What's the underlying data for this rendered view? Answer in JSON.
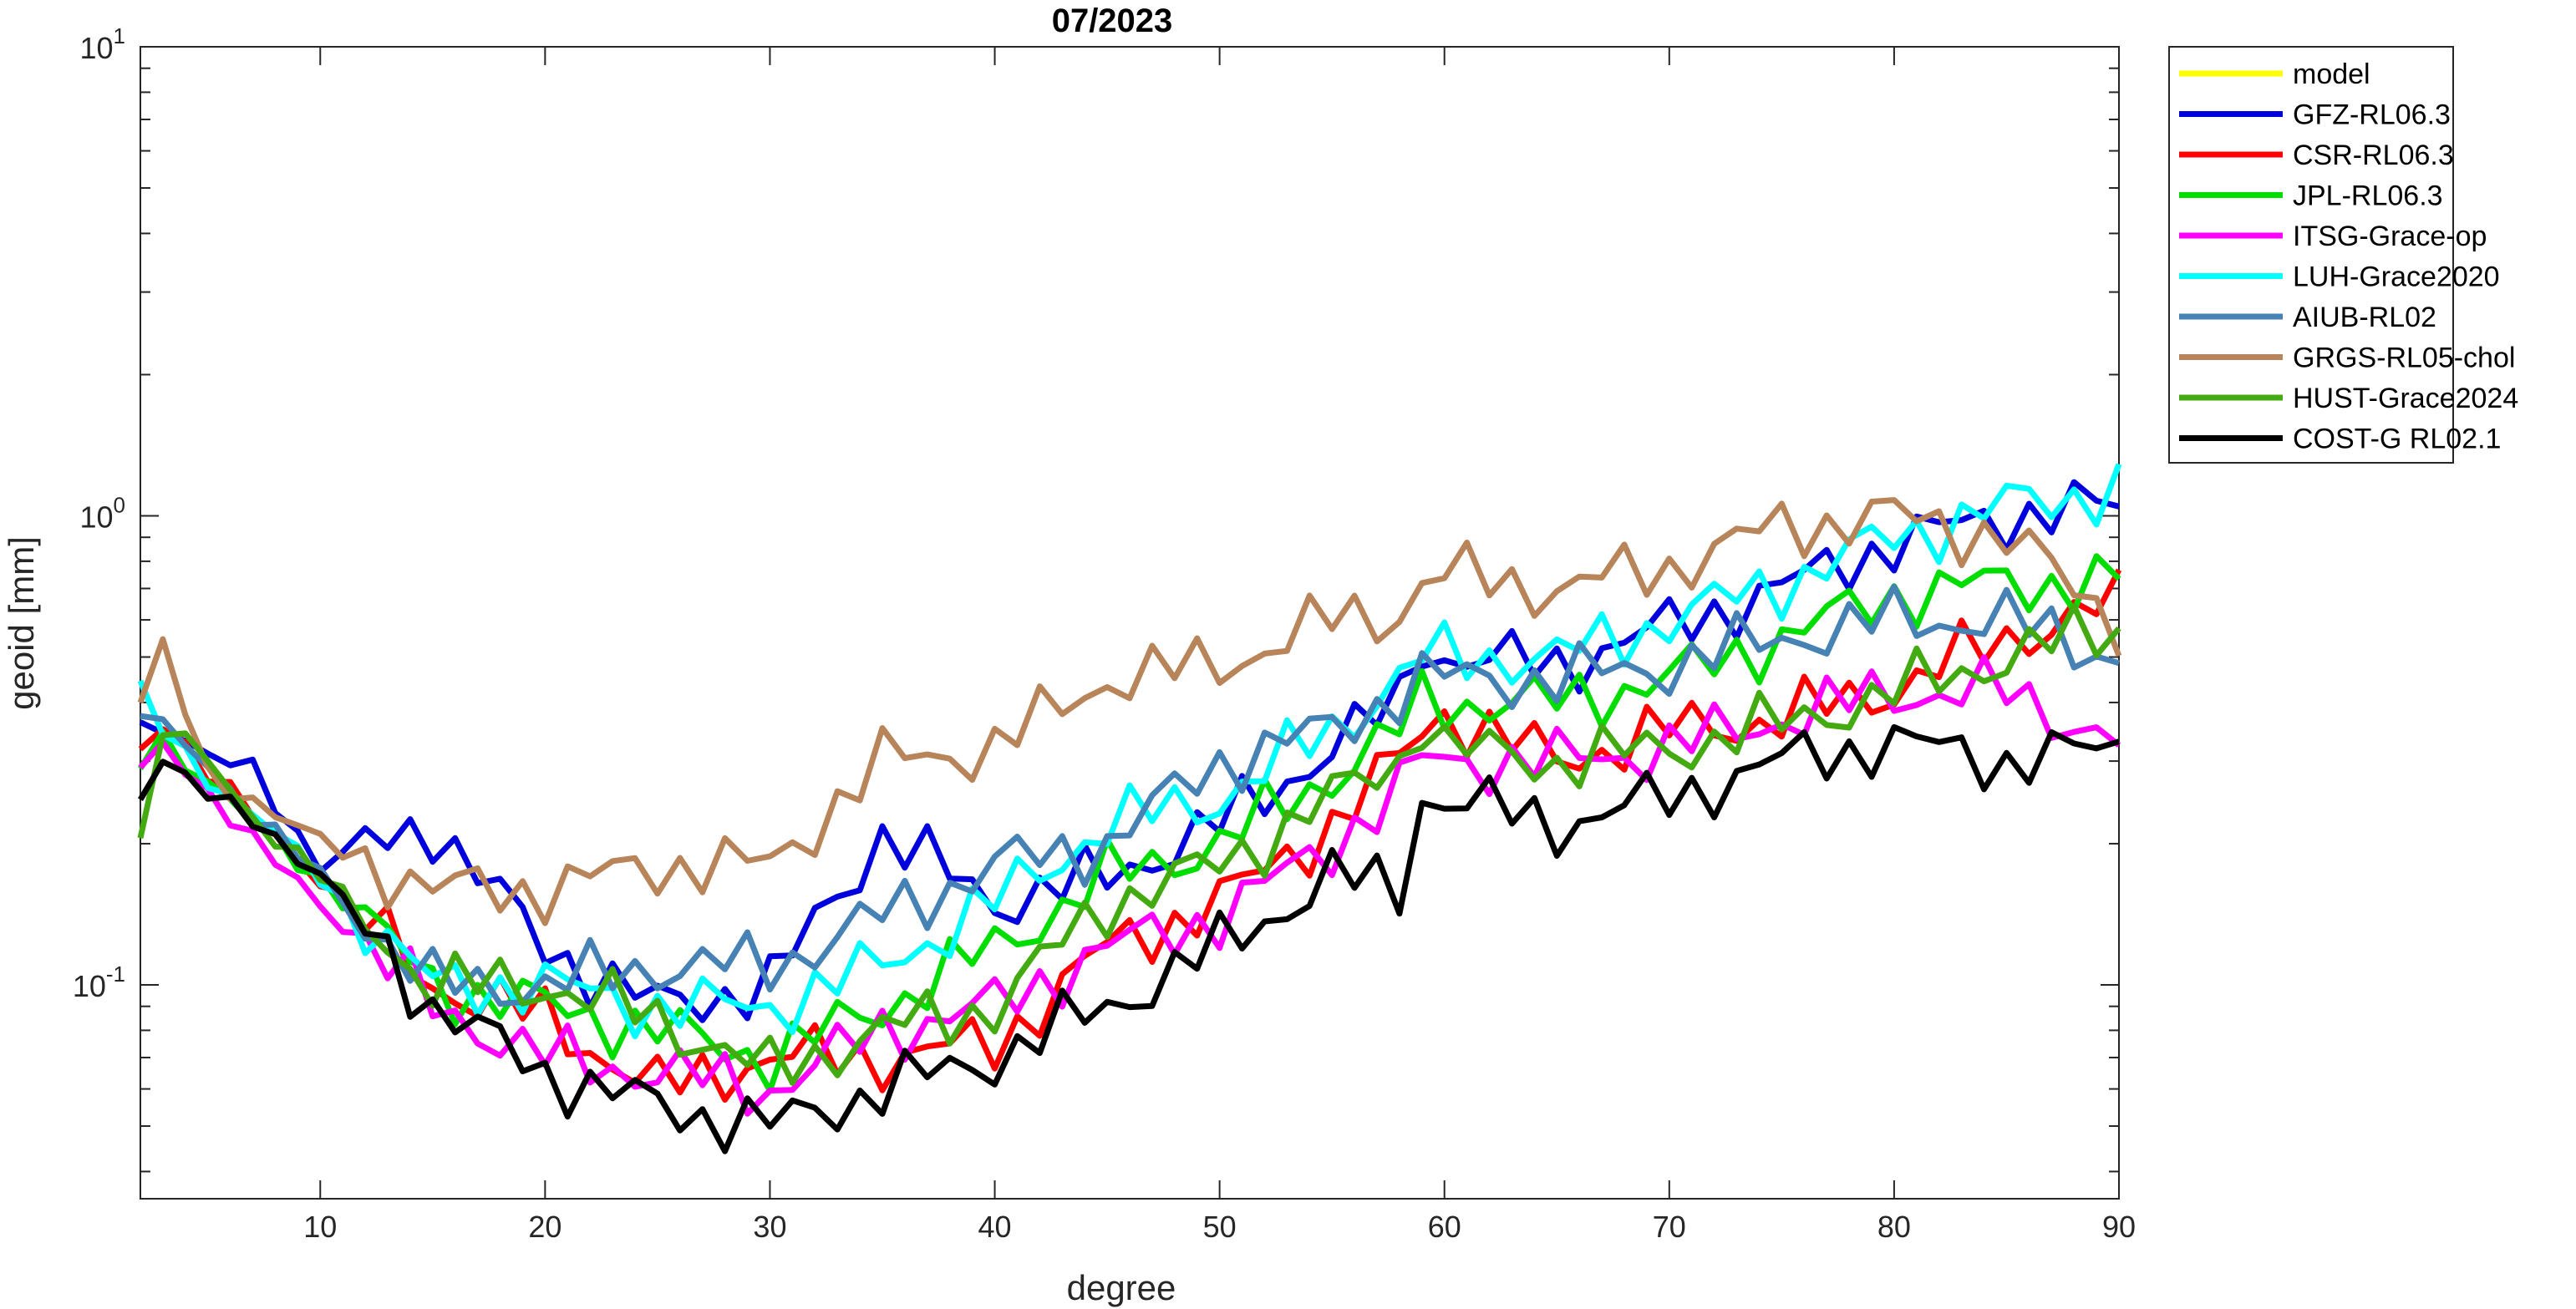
{
  "chart_data": {
    "type": "line",
    "title": "07/2023",
    "xlabel": "degree",
    "ylabel": "geoid [mm]",
    "xlim": [
      2,
      90
    ],
    "ylim": [
      0.035,
      10
    ],
    "yscale": "log",
    "grid": false,
    "legend_position": "outside-top-right",
    "x_ticks": [
      10,
      20,
      30,
      40,
      50,
      60,
      70,
      80,
      90
    ],
    "y_ticks": [
      {
        "value": 0.1,
        "base": "10",
        "exp": "-1"
      },
      {
        "value": 1,
        "base": "10",
        "exp": "0"
      },
      {
        "value": 10,
        "base": "10",
        "exp": "1"
      }
    ],
    "x_anchors": [
      2,
      3,
      5,
      7,
      10,
      15,
      20,
      25,
      30,
      35,
      40,
      45,
      50,
      55,
      58,
      59,
      60,
      65,
      70,
      75,
      80,
      85,
      90
    ],
    "series": [
      {
        "name": "model",
        "color": "#FFFF00",
        "values": []
      },
      {
        "name": "GFZ-RL06.3",
        "color": "#0000DD",
        "values": [
          0.36,
          0.36,
          0.3,
          0.29,
          0.18,
          0.22,
          0.12,
          0.09,
          0.1,
          0.21,
          0.15,
          0.17,
          0.22,
          0.32,
          0.4,
          0.55,
          0.5,
          0.48,
          0.58,
          0.7,
          0.88,
          1.0,
          1.05
        ]
      },
      {
        "name": "CSR-RL06.3",
        "color": "#FF0000",
        "values": [
          0.32,
          0.37,
          0.28,
          0.23,
          0.17,
          0.1,
          0.085,
          0.06,
          0.07,
          0.07,
          0.075,
          0.12,
          0.15,
          0.22,
          0.3,
          0.35,
          0.38,
          0.3,
          0.35,
          0.37,
          0.43,
          0.55,
          0.65
        ]
      },
      {
        "name": "JPL-RL06.3",
        "color": "#00DD00",
        "values": [
          0.3,
          0.34,
          0.27,
          0.22,
          0.17,
          0.1,
          0.09,
          0.08,
          0.07,
          0.09,
          0.12,
          0.17,
          0.2,
          0.28,
          0.35,
          0.4,
          0.4,
          0.4,
          0.45,
          0.55,
          0.68,
          0.72,
          0.72
        ]
      },
      {
        "name": "ITSG-Grace-op",
        "color": "#FF00FF",
        "values": [
          0.28,
          0.33,
          0.26,
          0.2,
          0.15,
          0.09,
          0.07,
          0.065,
          0.06,
          0.08,
          0.09,
          0.12,
          0.14,
          0.2,
          0.26,
          0.3,
          0.3,
          0.3,
          0.32,
          0.37,
          0.42,
          0.42,
          0.33
        ]
      },
      {
        "name": "LUH-Grace2020",
        "color": "#00FFFF",
        "values": [
          0.42,
          0.35,
          0.28,
          0.23,
          0.17,
          0.1,
          0.1,
          0.09,
          0.09,
          0.11,
          0.15,
          0.22,
          0.25,
          0.35,
          0.45,
          0.5,
          0.5,
          0.5,
          0.6,
          0.72,
          0.9,
          1.05,
          1.15
        ]
      },
      {
        "name": "AIUB-RL02",
        "color": "#4682B4",
        "values": [
          0.38,
          0.35,
          0.3,
          0.23,
          0.17,
          0.1,
          0.1,
          0.11,
          0.11,
          0.14,
          0.18,
          0.2,
          0.3,
          0.35,
          0.42,
          0.45,
          0.45,
          0.45,
          0.48,
          0.55,
          0.6,
          0.6,
          0.5
        ]
      },
      {
        "name": "GRGS-RL05-chol",
        "color": "#B8845A",
        "values": [
          0.4,
          0.52,
          0.28,
          0.25,
          0.2,
          0.16,
          0.16,
          0.18,
          0.18,
          0.3,
          0.32,
          0.45,
          0.48,
          0.6,
          0.62,
          0.72,
          0.75,
          0.7,
          0.78,
          0.95,
          1.0,
          0.9,
          0.6
        ]
      },
      {
        "name": "HUST-Grace2024",
        "color": "#44AA11",
        "values": [
          0.2,
          0.35,
          0.3,
          0.23,
          0.17,
          0.1,
          0.1,
          0.085,
          0.065,
          0.08,
          0.09,
          0.15,
          0.18,
          0.25,
          0.3,
          0.38,
          0.32,
          0.3,
          0.32,
          0.36,
          0.42,
          0.5,
          0.58
        ]
      },
      {
        "name": "COST-G RL02.1",
        "color": "#000000",
        "values": [
          0.26,
          0.3,
          0.25,
          0.23,
          0.17,
          0.09,
          0.065,
          0.055,
          0.05,
          0.06,
          0.07,
          0.09,
          0.12,
          0.17,
          0.16,
          0.25,
          0.25,
          0.22,
          0.25,
          0.3,
          0.33,
          0.3,
          0.32
        ]
      }
    ]
  }
}
